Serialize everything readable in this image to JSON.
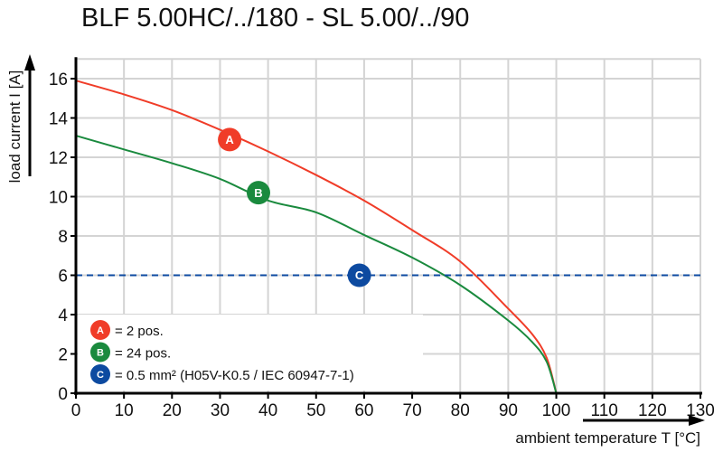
{
  "chart_data": {
    "type": "line",
    "title": "BLF 5.00HC/../180 - SL 5.00/../90",
    "xlabel": "ambient temperature T [°C]",
    "ylabel": "load current I [A]",
    "xlim": [
      0,
      130
    ],
    "ylim": [
      0,
      17
    ],
    "xticks": [
      0,
      10,
      20,
      30,
      40,
      50,
      60,
      70,
      80,
      90,
      100,
      110,
      120,
      130
    ],
    "yticks": [
      0,
      2,
      4,
      6,
      8,
      10,
      12,
      14,
      16
    ],
    "grid": true,
    "series": [
      {
        "marker": "A",
        "color": "#f03c28",
        "x": [
          0,
          10,
          20,
          30,
          40,
          50,
          60,
          70,
          80,
          90,
          95,
          98,
          100
        ],
        "y": [
          15.9,
          15.2,
          14.4,
          13.4,
          12.3,
          11.1,
          9.8,
          8.3,
          6.7,
          4.3,
          3.0,
          1.8,
          0
        ]
      },
      {
        "marker": "B",
        "color": "#1a8a3e",
        "x": [
          0,
          10,
          20,
          30,
          40,
          50,
          60,
          70,
          80,
          90,
          95,
          98,
          100
        ],
        "y": [
          13.1,
          12.4,
          11.7,
          10.9,
          9.8,
          9.2,
          8.05,
          6.9,
          5.5,
          3.7,
          2.6,
          1.6,
          0
        ]
      },
      {
        "marker": "C",
        "color": "#0d4aa0",
        "style": "dashed",
        "x": [
          0,
          130
        ],
        "y": [
          6,
          6
        ]
      }
    ],
    "marker_positions": [
      {
        "label": "A",
        "x": 32,
        "y": 12.9
      },
      {
        "label": "B",
        "x": 38,
        "y": 10.2
      },
      {
        "label": "C",
        "x": 59,
        "y": 6
      }
    ],
    "legend": {
      "placement": "bottom-left",
      "entries": [
        {
          "label": "A",
          "text": "= 2 pos.",
          "color": "#f03c28"
        },
        {
          "label": "B",
          "text": "= 24 pos.",
          "color": "#1a8a3e"
        },
        {
          "label": "C",
          "text": "= 0.5 mm² (H05V-K0.5 / IEC 60947-7-1)",
          "color": "#0d4aa0"
        }
      ]
    }
  }
}
